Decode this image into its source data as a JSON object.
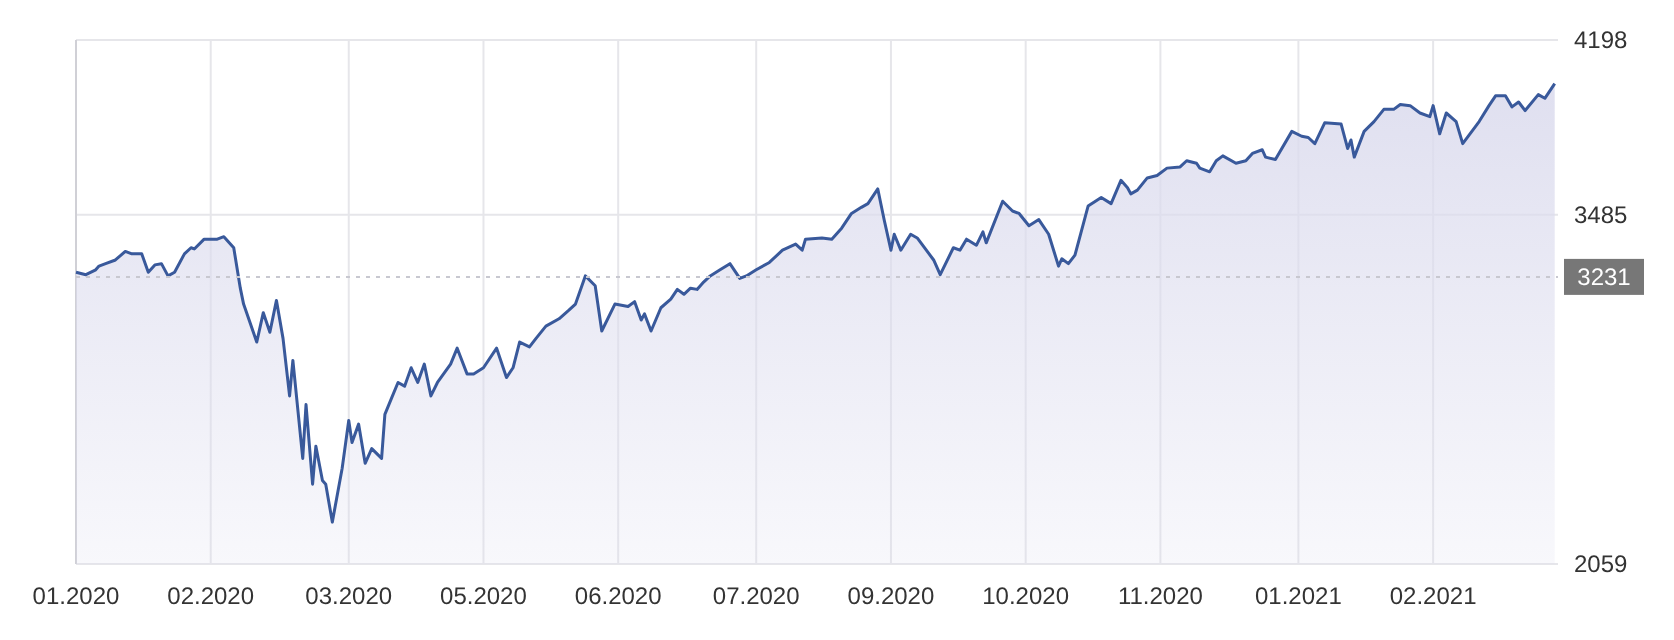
{
  "chart_data": {
    "type": "area",
    "xlim": [
      "2020-01-02",
      "2021-03-28"
    ],
    "ylim": [
      2059,
      4198
    ],
    "yticks": [
      2059,
      3485,
      4198
    ],
    "grid": true,
    "xticks": [
      {
        "value": "2020-01-02",
        "label": "01.2020"
      },
      {
        "value": "2020-02-12",
        "label": "02.2020"
      },
      {
        "value": "2020-03-25",
        "label": "03.2020"
      },
      {
        "value": "2020-05-05",
        "label": "05.2020"
      },
      {
        "value": "2020-06-15",
        "label": "06.2020"
      },
      {
        "value": "2020-07-27",
        "label": "07.2020"
      },
      {
        "value": "2020-09-06",
        "label": "09.2020"
      },
      {
        "value": "2020-10-17",
        "label": "10.2020"
      },
      {
        "value": "2020-11-27",
        "label": "11.2020"
      },
      {
        "value": "2021-01-08",
        "label": "01.2021"
      },
      {
        "value": "2021-02-18",
        "label": "02.2021"
      }
    ],
    "ref_lines": [
      {
        "axis": "y",
        "value": 3231,
        "label": "3231",
        "color": "#c8c8d0",
        "line_style": "dotted"
      }
    ],
    "series": [
      {
        "color": "#39599b",
        "x": [
          "2020-01-02",
          "2020-01-05",
          "2020-01-08",
          "2020-01-09",
          "2020-01-11",
          "2020-01-14",
          "2020-01-17",
          "2020-01-19",
          "2020-01-22",
          "2020-01-24",
          "2020-01-26",
          "2020-01-28",
          "2020-01-30",
          "2020-02-01",
          "2020-02-04",
          "2020-02-06",
          "2020-02-07",
          "2020-02-10",
          "2020-02-14",
          "2020-02-16",
          "2020-02-19",
          "2020-02-21",
          "2020-02-22",
          "2020-02-26",
          "2020-02-28",
          "2020-03-01",
          "2020-03-03",
          "2020-03-05",
          "2020-03-07",
          "2020-03-08",
          "2020-03-11",
          "2020-03-12",
          "2020-03-14",
          "2020-03-15",
          "2020-03-17",
          "2020-03-18",
          "2020-03-20",
          "2020-03-23",
          "2020-03-25",
          "2020-03-26",
          "2020-03-28",
          "2020-03-30",
          "2020-04-01",
          "2020-04-04",
          "2020-04-05",
          "2020-04-07",
          "2020-04-09",
          "2020-04-11",
          "2020-04-13",
          "2020-04-15",
          "2020-04-17",
          "2020-04-19",
          "2020-04-21",
          "2020-04-25",
          "2020-04-27",
          "2020-04-30",
          "2020-05-02",
          "2020-05-05",
          "2020-05-09",
          "2020-05-12",
          "2020-05-14",
          "2020-05-16",
          "2020-05-19",
          "2020-05-21",
          "2020-05-24",
          "2020-05-28",
          "2020-05-31",
          "2020-06-02",
          "2020-06-05",
          "2020-06-08",
          "2020-06-10",
          "2020-06-14",
          "2020-06-18",
          "2020-06-20",
          "2020-06-22",
          "2020-06-23",
          "2020-06-25",
          "2020-06-28",
          "2020-07-01",
          "2020-07-03",
          "2020-07-05",
          "2020-07-07",
          "2020-07-09",
          "2020-07-11",
          "2020-07-13",
          "2020-07-16",
          "2020-07-19",
          "2020-07-22",
          "2020-07-24",
          "2020-07-27",
          "2020-07-31",
          "2020-08-04",
          "2020-08-08",
          "2020-08-10",
          "2020-08-11",
          "2020-08-16",
          "2020-08-19",
          "2020-08-22",
          "2020-08-25",
          "2020-08-28",
          "2020-08-30",
          "2020-09-02",
          "2020-09-04",
          "2020-09-06",
          "2020-09-07",
          "2020-09-09",
          "2020-09-12",
          "2020-09-14",
          "2020-09-19",
          "2020-09-21",
          "2020-09-25",
          "2020-09-27",
          "2020-09-29",
          "2020-10-02",
          "2020-10-04",
          "2020-10-05",
          "2020-10-10",
          "2020-10-13",
          "2020-10-15",
          "2020-10-18",
          "2020-10-21",
          "2020-10-24",
          "2020-10-27",
          "2020-10-28",
          "2020-10-30",
          "2020-11-01",
          "2020-11-05",
          "2020-11-09",
          "2020-11-12",
          "2020-11-15",
          "2020-11-17",
          "2020-11-18",
          "2020-11-20",
          "2020-11-23",
          "2020-11-26",
          "2020-11-29",
          "2020-12-03",
          "2020-12-05",
          "2020-12-08",
          "2020-12-09",
          "2020-12-12",
          "2020-12-14",
          "2020-12-16",
          "2020-12-20",
          "2020-12-23",
          "2020-12-25",
          "2020-12-28",
          "2020-12-29",
          "2021-01-01",
          "2021-01-06",
          "2021-01-09",
          "2021-01-11",
          "2021-01-13",
          "2021-01-16",
          "2021-01-21",
          "2021-01-23",
          "2021-01-24",
          "2021-01-25",
          "2021-01-28",
          "2021-01-31",
          "2021-02-03",
          "2021-02-06",
          "2021-02-08",
          "2021-02-11",
          "2021-02-14",
          "2021-02-17",
          "2021-02-18",
          "2021-02-20",
          "2021-02-22",
          "2021-02-25",
          "2021-02-27",
          "2021-03-04",
          "2021-03-07",
          "2021-03-09",
          "2021-03-12",
          "2021-03-14",
          "2021-03-16",
          "2021-03-18",
          "2021-03-22",
          "2021-03-24",
          "2021-03-27"
        ],
        "values": [
          3250,
          3240,
          3260,
          3275,
          3285,
          3300,
          3335,
          3325,
          3325,
          3250,
          3280,
          3285,
          3235,
          3250,
          3325,
          3350,
          3345,
          3385,
          3385,
          3395,
          3350,
          3185,
          3120,
          2965,
          3085,
          3005,
          3135,
          2980,
          2745,
          2890,
          2490,
          2710,
          2385,
          2540,
          2400,
          2385,
          2230,
          2450,
          2645,
          2555,
          2630,
          2470,
          2530,
          2490,
          2670,
          2735,
          2800,
          2785,
          2860,
          2800,
          2875,
          2745,
          2800,
          2875,
          2940,
          2835,
          2835,
          2860,
          2940,
          2820,
          2860,
          2965,
          2945,
          2980,
          3030,
          3060,
          3095,
          3120,
          3235,
          3195,
          3010,
          3120,
          3110,
          3130,
          3055,
          3080,
          3010,
          3105,
          3140,
          3180,
          3160,
          3185,
          3180,
          3210,
          3235,
          3260,
          3285,
          3225,
          3235,
          3260,
          3290,
          3340,
          3365,
          3340,
          3385,
          3390,
          3385,
          3430,
          3490,
          3515,
          3530,
          3590,
          3460,
          3340,
          3405,
          3340,
          3405,
          3390,
          3300,
          3240,
          3350,
          3340,
          3385,
          3360,
          3415,
          3370,
          3540,
          3500,
          3490,
          3440,
          3465,
          3405,
          3275,
          3305,
          3285,
          3320,
          3520,
          3555,
          3530,
          3625,
          3595,
          3570,
          3585,
          3635,
          3645,
          3675,
          3680,
          3705,
          3695,
          3675,
          3660,
          3705,
          3725,
          3695,
          3705,
          3735,
          3750,
          3720,
          3710,
          3825,
          3805,
          3800,
          3775,
          3860,
          3855,
          3755,
          3790,
          3720,
          3825,
          3865,
          3915,
          3915,
          3935,
          3930,
          3900,
          3885,
          3930,
          3815,
          3900,
          3865,
          3775,
          3865,
          3930,
          3970,
          3970,
          3925,
          3945,
          3910,
          3975,
          3960,
          4020
        ]
      }
    ]
  }
}
